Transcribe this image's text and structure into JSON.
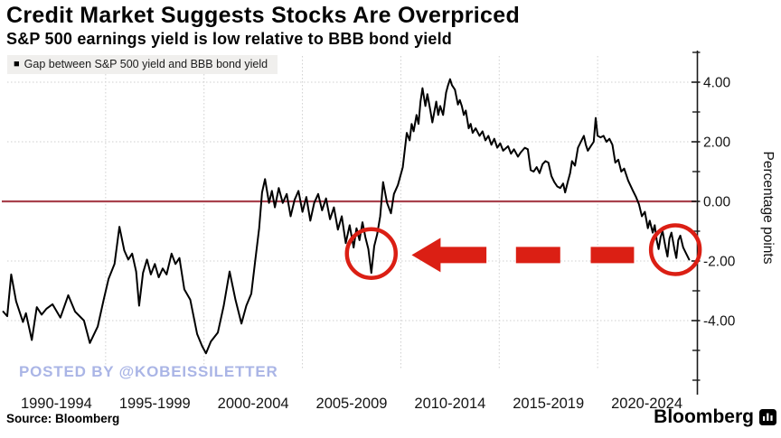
{
  "header": {
    "title": "Credit Market Suggests Stocks Are Overpriced",
    "subtitle": "S&P 500 earnings yield is low relative to BBB bond yield"
  },
  "legend": {
    "swatch_glyph": "■",
    "label": "Gap between S&P 500 yield and BBB bond yield"
  },
  "watermark": {
    "text": "POSTED BY @KOBEISSILETTER",
    "color": "#aab5e6"
  },
  "footer": {
    "source": "Source: Bloomberg",
    "brand": "Bloomberg"
  },
  "chart_data": {
    "type": "line",
    "title": "Credit Market Suggests Stocks Are Overpriced",
    "subtitle": "S&P 500 earnings yield is low relative to BBB bond yield",
    "ylabel": "Percentage points",
    "x_tick_labels": [
      "1990-1994",
      "1995-1999",
      "2000-2004",
      "2005-2009",
      "2010-2014",
      "2015-2019",
      "2020-2024"
    ],
    "x_range": [
      1990,
      2025
    ],
    "ylim": [
      -6.5,
      5.2
    ],
    "grid_h_lines": [
      4,
      2,
      -2,
      -4
    ],
    "y_major_ticks": [
      {
        "value": 4,
        "label": "4.00"
      },
      {
        "value": 2,
        "label": "2.00"
      },
      {
        "value": 0,
        "label": "0.00"
      },
      {
        "value": -2,
        "label": "-2.00"
      },
      {
        "value": -4,
        "label": "-4.00"
      }
    ],
    "y_minor_ticks": [
      5,
      3,
      1,
      -1,
      -3,
      -5,
      -6
    ],
    "zero_line": {
      "value": 0,
      "color": "#a8414d"
    },
    "series": [
      {
        "name": "Gap between S&P 500 yield and BBB bond yield",
        "color": "#000000",
        "points": [
          [
            1989.8,
            -3.7
          ],
          [
            1990.0,
            -3.85
          ],
          [
            1990.2,
            -2.45
          ],
          [
            1990.45,
            -3.35
          ],
          [
            1990.8,
            -4.05
          ],
          [
            1990.95,
            -3.75
          ],
          [
            1991.25,
            -4.65
          ],
          [
            1991.5,
            -3.55
          ],
          [
            1991.75,
            -3.8
          ],
          [
            1992.0,
            -3.6
          ],
          [
            1992.3,
            -3.45
          ],
          [
            1992.7,
            -3.9
          ],
          [
            1993.1,
            -3.15
          ],
          [
            1993.45,
            -3.7
          ],
          [
            1993.9,
            -4.0
          ],
          [
            1994.2,
            -4.75
          ],
          [
            1994.6,
            -4.2
          ],
          [
            1994.9,
            -3.3
          ],
          [
            1995.15,
            -2.6
          ],
          [
            1995.45,
            -2.1
          ],
          [
            1995.7,
            -0.85
          ],
          [
            1995.95,
            -1.65
          ],
          [
            1996.15,
            -1.95
          ],
          [
            1996.35,
            -1.75
          ],
          [
            1996.55,
            -2.35
          ],
          [
            1996.7,
            -3.5
          ],
          [
            1996.9,
            -2.4
          ],
          [
            1997.1,
            -1.95
          ],
          [
            1997.3,
            -2.45
          ],
          [
            1997.5,
            -2.1
          ],
          [
            1997.7,
            -2.55
          ],
          [
            1997.9,
            -2.25
          ],
          [
            1998.1,
            -2.45
          ],
          [
            1998.35,
            -1.75
          ],
          [
            1998.55,
            -2.1
          ],
          [
            1998.75,
            -1.9
          ],
          [
            1999.0,
            -2.95
          ],
          [
            1999.3,
            -3.3
          ],
          [
            1999.65,
            -4.45
          ],
          [
            1999.9,
            -4.85
          ],
          [
            2000.1,
            -5.1
          ],
          [
            2000.35,
            -4.7
          ],
          [
            2000.7,
            -4.4
          ],
          [
            2001.0,
            -3.5
          ],
          [
            2001.3,
            -2.35
          ],
          [
            2001.6,
            -3.3
          ],
          [
            2001.9,
            -4.1
          ],
          [
            2002.15,
            -3.5
          ],
          [
            2002.4,
            -3.1
          ],
          [
            2002.6,
            -2.0
          ],
          [
            2002.8,
            -0.9
          ],
          [
            2002.95,
            0.3
          ],
          [
            2003.1,
            0.75
          ],
          [
            2003.3,
            -0.05
          ],
          [
            2003.45,
            0.35
          ],
          [
            2003.6,
            -0.2
          ],
          [
            2003.8,
            0.45
          ],
          [
            2004.0,
            -0.05
          ],
          [
            2004.2,
            0.25
          ],
          [
            2004.4,
            -0.5
          ],
          [
            2004.6,
            0.05
          ],
          [
            2004.8,
            0.35
          ],
          [
            2005.0,
            -0.35
          ],
          [
            2005.2,
            0.15
          ],
          [
            2005.4,
            -0.65
          ],
          [
            2005.6,
            -0.05
          ],
          [
            2005.8,
            0.25
          ],
          [
            2006.0,
            -0.3
          ],
          [
            2006.2,
            0.1
          ],
          [
            2006.4,
            -0.6
          ],
          [
            2006.6,
            -0.2
          ],
          [
            2006.8,
            -0.95
          ],
          [
            2007.0,
            -0.5
          ],
          [
            2007.2,
            -1.4
          ],
          [
            2007.4,
            -0.8
          ],
          [
            2007.6,
            -1.55
          ],
          [
            2007.75,
            -0.9
          ],
          [
            2007.9,
            -1.3
          ],
          [
            2008.05,
            -0.7
          ],
          [
            2008.2,
            -1.2
          ],
          [
            2008.35,
            -1.6
          ],
          [
            2008.5,
            -2.4
          ],
          [
            2008.65,
            -1.5
          ],
          [
            2008.8,
            -1.1
          ],
          [
            2008.95,
            -0.5
          ],
          [
            2009.1,
            0.65
          ],
          [
            2009.3,
            -0.05
          ],
          [
            2009.5,
            -0.4
          ],
          [
            2009.65,
            0.25
          ],
          [
            2009.85,
            0.55
          ],
          [
            2010.1,
            1.15
          ],
          [
            2010.3,
            2.3
          ],
          [
            2010.45,
            2.05
          ],
          [
            2010.55,
            2.6
          ],
          [
            2010.65,
            2.35
          ],
          [
            2010.8,
            2.9
          ],
          [
            2010.9,
            2.6
          ],
          [
            2011.0,
            3.35
          ],
          [
            2011.1,
            3.8
          ],
          [
            2011.25,
            3.2
          ],
          [
            2011.35,
            3.6
          ],
          [
            2011.5,
            3.05
          ],
          [
            2011.6,
            2.65
          ],
          [
            2011.8,
            3.35
          ],
          [
            2011.9,
            2.9
          ],
          [
            2012.0,
            3.2
          ],
          [
            2012.15,
            2.9
          ],
          [
            2012.3,
            3.65
          ],
          [
            2012.4,
            3.9
          ],
          [
            2012.5,
            4.1
          ],
          [
            2012.6,
            3.9
          ],
          [
            2012.75,
            3.75
          ],
          [
            2012.9,
            3.25
          ],
          [
            2013.0,
            3.4
          ],
          [
            2013.1,
            3.2
          ],
          [
            2013.2,
            2.9
          ],
          [
            2013.3,
            3.05
          ],
          [
            2013.45,
            2.45
          ],
          [
            2013.55,
            2.6
          ],
          [
            2013.65,
            2.3
          ],
          [
            2013.8,
            2.45
          ],
          [
            2014.0,
            2.2
          ],
          [
            2014.15,
            2.35
          ],
          [
            2014.3,
            2.05
          ],
          [
            2014.45,
            2.2
          ],
          [
            2014.6,
            1.9
          ],
          [
            2014.75,
            2.1
          ],
          [
            2014.9,
            1.8
          ],
          [
            2015.05,
            1.95
          ],
          [
            2015.2,
            1.7
          ],
          [
            2015.45,
            1.85
          ],
          [
            2015.6,
            1.6
          ],
          [
            2015.75,
            1.75
          ],
          [
            2015.95,
            1.5
          ],
          [
            2016.1,
            1.65
          ],
          [
            2016.3,
            1.8
          ],
          [
            2016.45,
            1.75
          ],
          [
            2016.6,
            1.05
          ],
          [
            2016.75,
            1.0
          ],
          [
            2016.9,
            1.15
          ],
          [
            2017.05,
            0.95
          ],
          [
            2017.2,
            1.25
          ],
          [
            2017.35,
            1.35
          ],
          [
            2017.5,
            1.3
          ],
          [
            2017.65,
            0.85
          ],
          [
            2017.8,
            0.65
          ],
          [
            2017.95,
            0.5
          ],
          [
            2018.1,
            0.45
          ],
          [
            2018.25,
            0.6
          ],
          [
            2018.35,
            0.3
          ],
          [
            2018.5,
            0.7
          ],
          [
            2018.6,
            0.95
          ],
          [
            2018.7,
            1.35
          ],
          [
            2018.85,
            1.2
          ],
          [
            2019.0,
            1.8
          ],
          [
            2019.15,
            2.0
          ],
          [
            2019.3,
            2.2
          ],
          [
            2019.4,
            1.9
          ],
          [
            2019.5,
            1.7
          ],
          [
            2019.65,
            1.85
          ],
          [
            2019.8,
            2.0
          ],
          [
            2019.9,
            2.8
          ],
          [
            2020.0,
            2.2
          ],
          [
            2020.15,
            2.15
          ],
          [
            2020.3,
            2.2
          ],
          [
            2020.45,
            2.0
          ],
          [
            2020.6,
            2.1
          ],
          [
            2020.75,
            1.9
          ],
          [
            2020.9,
            1.3
          ],
          [
            2021.05,
            1.4
          ],
          [
            2021.2,
            1.0
          ],
          [
            2021.35,
            1.1
          ],
          [
            2021.55,
            0.7
          ],
          [
            2021.8,
            0.35
          ],
          [
            2021.95,
            0.15
          ],
          [
            2022.1,
            -0.1
          ],
          [
            2022.25,
            -0.5
          ],
          [
            2022.4,
            -0.35
          ],
          [
            2022.55,
            -0.9
          ],
          [
            2022.65,
            -0.65
          ],
          [
            2022.8,
            -1.05
          ],
          [
            2022.9,
            -0.8
          ],
          [
            2023.0,
            -1.3
          ],
          [
            2023.1,
            -1.6
          ],
          [
            2023.2,
            -1.2
          ],
          [
            2023.3,
            -1.0
          ],
          [
            2023.45,
            -1.55
          ],
          [
            2023.55,
            -1.85
          ],
          [
            2023.65,
            -1.25
          ],
          [
            2023.75,
            -1.05
          ],
          [
            2023.9,
            -1.6
          ],
          [
            2024.0,
            -1.9
          ],
          [
            2024.1,
            -1.3
          ],
          [
            2024.2,
            -1.15
          ],
          [
            2024.35,
            -1.55
          ],
          [
            2024.5,
            -1.75
          ],
          [
            2024.65,
            -1.95
          ]
        ]
      }
    ],
    "annotations": {
      "color": "#db1f14",
      "circles": [
        {
          "x": 2008.5,
          "y": -1.75,
          "radius_px": 27
        },
        {
          "x": 2023.95,
          "y": -1.62,
          "radius_px": 27
        }
      ],
      "arrow": {
        "tip": [
          2010.55,
          -1.8
        ],
        "solid_tail": [
          2014.35,
          -1.8
        ],
        "dashes": [
          [
            2015.85,
            2018.1
          ],
          [
            2019.65,
            2021.85
          ]
        ]
      }
    }
  }
}
